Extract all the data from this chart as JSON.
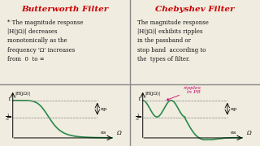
{
  "bg_color": "#f0ece0",
  "divider_color": "#888888",
  "title_left": "Butterworth Filter",
  "title_right": "Chebyshev Filter",
  "title_color": "#cc0000",
  "text_color": "#111111",
  "curve_color": "#2a8a4a",
  "annotation_color": "#cc0066",
  "ripple_annotation": "ripples\n in PB",
  "left_text": "* The magnitude response\n|H(jΩ)| decreases\nmonotonically as the\nfrequency 'Ω' increases\nfrom  0  to ∞",
  "right_text": "The magnitude response\n|H(jΩ)| exhibits ripples\nin the passband or\nstop band  according to\nthe  types of filter.",
  "left_ylabel": "|H(jΩ)|",
  "right_ylabel": "|H(jΩ)|",
  "left_xlabel": "Ω",
  "right_xlabel": "Ω",
  "alpha_p": "αp",
  "alpha_s": "αs"
}
